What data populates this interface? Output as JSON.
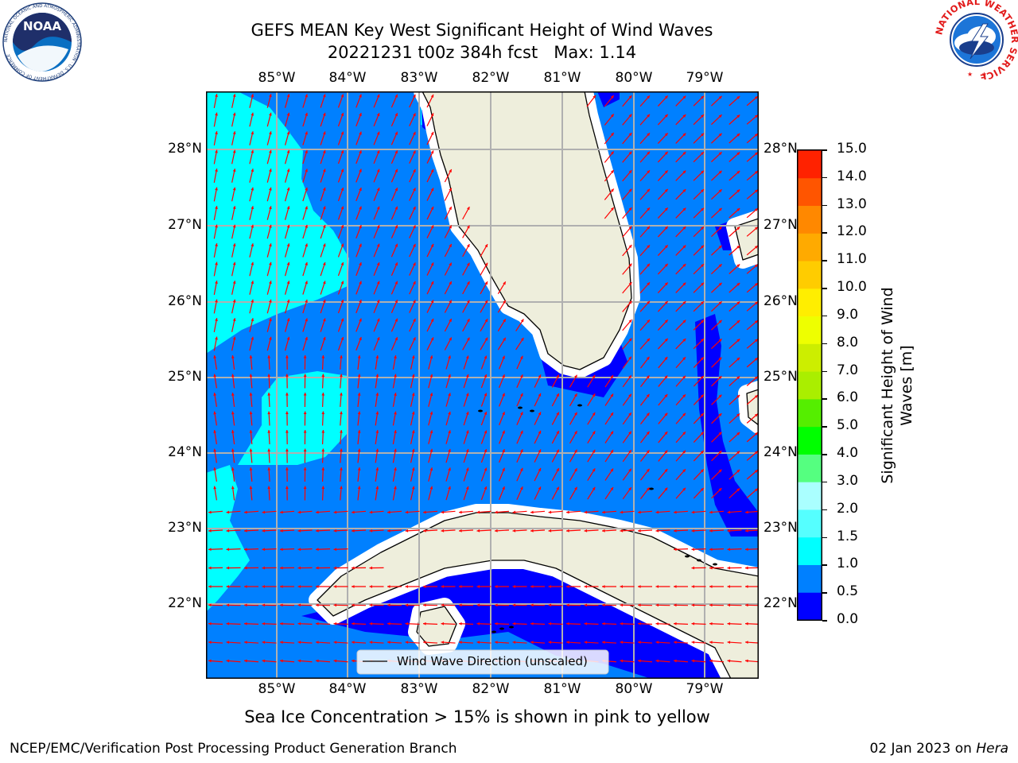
{
  "title": {
    "line1": "GEFS MEAN Key West Significant Height of Wind Waves",
    "line2": "20221231 t00z 384h fcst   Max: 1.14"
  },
  "map": {
    "lon_labels": [
      "85°W",
      "84°W",
      "83°W",
      "82°W",
      "81°W",
      "80°W",
      "79°W"
    ],
    "lat_labels": [
      "28°N",
      "27°N",
      "26°N",
      "25°N",
      "24°N",
      "23°N",
      "22°N"
    ],
    "legend": "Wind Wave Direction (unscaled)",
    "colors": {
      "ocean_0_0_5": "#0000ff",
      "ocean_0_5_1_0": "#0080ff",
      "ocean_1_0_1_5": "#00ffff",
      "land": "#eeeedc",
      "arrow": "#ff0000",
      "grid": "#b0b0b0"
    }
  },
  "colorbar": {
    "label": "Significant Height of Wind Waves [m]",
    "tick_labels": [
      "0.0",
      "0.5",
      "1.0",
      "1.5",
      "2.0",
      "3.0",
      "4.0",
      "5.0",
      "6.0",
      "7.0",
      "8.0",
      "9.0",
      "10.0",
      "11.0",
      "12.0",
      "13.0",
      "14.0",
      "15.0"
    ],
    "colors": [
      "#0000ff",
      "#0080ff",
      "#00ffff",
      "#55ffff",
      "#aaffff",
      "#55ff80",
      "#00ff00",
      "#55ee00",
      "#aaee00",
      "#ccee00",
      "#eeff00",
      "#ffee00",
      "#ffcc00",
      "#ffaa00",
      "#ff8800",
      "#ff5500",
      "#ff2200"
    ]
  },
  "ice_note": "Sea Ice Concentration > 15% is shown in pink to yellow",
  "footer": {
    "left": "NCEP/EMC/Verification Post Processing Product Generation Branch",
    "right_prefix": "02 Jan 2023 on ",
    "right_host": "Hera"
  },
  "logos": {
    "noaa": "NOAA",
    "noaa_ring": "NATIONAL OCEANIC AND ATMOSPHERIC ADMINISTRATION · U.S. DEPARTMENT OF COMMERCE",
    "nws_ring": "NATIONAL WEATHER SERVICE"
  }
}
